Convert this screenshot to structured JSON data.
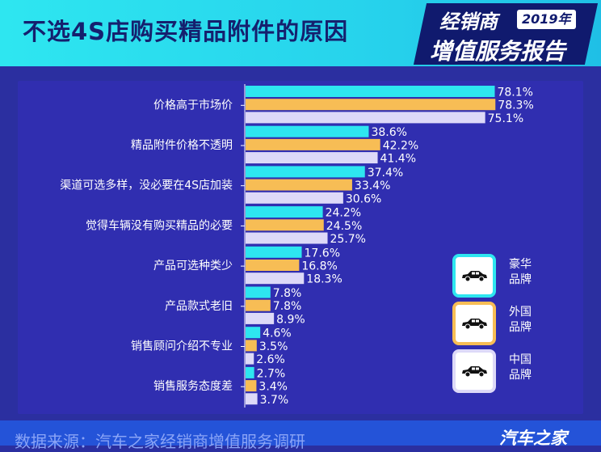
{
  "header": {
    "title": "不选4S店购买精品附件的原因",
    "badge_line1": "经销商",
    "badge_year": "2019年",
    "badge_line2": "增值服务报告"
  },
  "footer": {
    "source": "数据来源：汽车之家经销商增值服务调研",
    "brand": "汽车之家"
  },
  "legend": [
    {
      "label": "豪华品牌",
      "color": "#2ee6f0",
      "icon": "car-icon"
    },
    {
      "label": "外国品牌",
      "color": "#f7bd55",
      "icon": "car-icon"
    },
    {
      "label": "中国品牌",
      "color": "#ddd9f8",
      "icon": "car-icon"
    }
  ],
  "chart_data": {
    "type": "bar",
    "orientation": "horizontal",
    "categories": [
      "价格高于市场价",
      "精品附件价格不透明",
      "渠道可选多样，没必要在4S店加装",
      "觉得车辆没有购买精品的必要",
      "产品可选种类少",
      "产品款式老旧",
      "销售顾问介绍不专业",
      "销售服务态度差"
    ],
    "series": [
      {
        "name": "豪华品牌",
        "color": "#2ee6f0",
        "values": [
          78.1,
          38.6,
          37.4,
          24.2,
          17.6,
          7.8,
          4.6,
          2.7
        ]
      },
      {
        "name": "外国品牌",
        "color": "#f7bd55",
        "values": [
          78.3,
          42.2,
          33.4,
          24.5,
          16.8,
          7.8,
          3.5,
          3.4
        ]
      },
      {
        "name": "中国品牌",
        "color": "#ddd9f8",
        "values": [
          75.1,
          41.4,
          30.6,
          25.7,
          18.3,
          8.9,
          2.6,
          3.7
        ]
      }
    ],
    "value_suffix": "%",
    "xlim": [
      0,
      80
    ],
    "legend_position": "right",
    "grid": false
  }
}
